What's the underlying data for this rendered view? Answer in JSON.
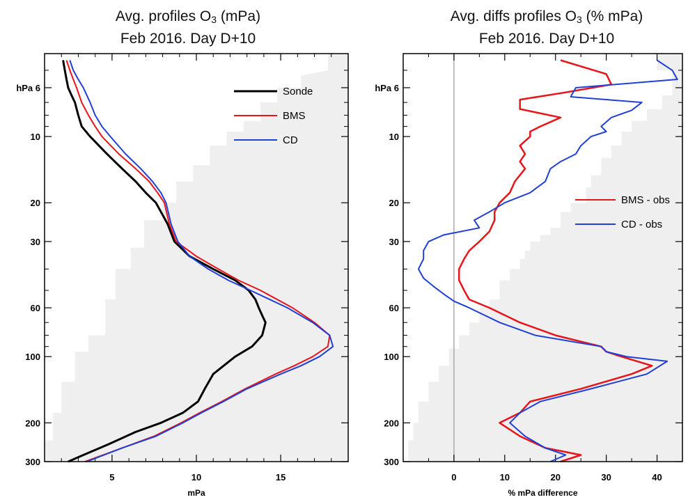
{
  "colors": {
    "sonde": "#000000",
    "bms": "#e8141a",
    "cd": "#1f3fd6",
    "shade": "#efefef",
    "zero_line": "#a8a8a8"
  },
  "titles": [
    {
      "line1_pre": "Avg. profiles O",
      "sub": "3",
      "line1_post": " (mPa)",
      "line2": "Feb 2016. Day D+10"
    },
    {
      "line1_pre": "Avg. diffs profiles O",
      "sub": "3",
      "line1_post": " (% mPa)",
      "line2": "Feb 2016. Day D+10"
    }
  ],
  "chart_data": [
    {
      "type": "line",
      "title": "Avg. profiles O3 (mPa) Feb 2016. Day D+10",
      "xlabel": "mPa",
      "ylabel": "hPa",
      "y_scale": "log",
      "y_inverted": true,
      "xlim": [
        1,
        19
      ],
      "ylim": [
        4.2,
        300
      ],
      "xticks": [
        5,
        10,
        15
      ],
      "yticks": [
        6,
        10,
        20,
        30,
        60,
        100,
        200,
        300
      ],
      "ytick_labels": [
        "hPa 6",
        "10",
        "20",
        "30",
        "60",
        "100",
        "200",
        "300"
      ],
      "legend": "top-right",
      "series": [
        {
          "name": "Sonde",
          "p": [
            4.5,
            5.0,
            5.5,
            6.0,
            6.5,
            7.0,
            8.0,
            9.0,
            10,
            12,
            14,
            16,
            18,
            20,
            25,
            30,
            35,
            40,
            45,
            50,
            55,
            60,
            65,
            70,
            80,
            90,
            100,
            120,
            140,
            160,
            180,
            200,
            220,
            250,
            280,
            300
          ],
          "x": [
            2.1,
            2.2,
            2.3,
            2.4,
            2.6,
            2.8,
            3.0,
            3.2,
            3.7,
            4.7,
            5.6,
            6.4,
            7.0,
            7.6,
            8.3,
            8.7,
            9.6,
            11.0,
            12.3,
            13.1,
            13.5,
            13.7,
            13.9,
            14.1,
            13.9,
            13.3,
            12.3,
            11.0,
            10.5,
            10.1,
            9.2,
            7.9,
            6.4,
            4.8,
            3.3,
            2.4
          ]
        },
        {
          "name": "BMS",
          "p": [
            4.5,
            5.0,
            5.5,
            6.0,
            7.0,
            8.0,
            9.0,
            10,
            12,
            14,
            16,
            18,
            20,
            25,
            30,
            35,
            40,
            45,
            50,
            60,
            70,
            80,
            90,
            100,
            110,
            120,
            140,
            160,
            180,
            200,
            230,
            260,
            300
          ],
          "x": [
            2.3,
            2.5,
            2.7,
            2.9,
            3.2,
            3.6,
            4.0,
            4.4,
            5.4,
            6.4,
            7.2,
            7.7,
            8.1,
            8.4,
            8.8,
            10.0,
            11.3,
            12.5,
            13.8,
            15.7,
            17.0,
            17.9,
            17.8,
            16.9,
            15.8,
            14.7,
            12.9,
            11.5,
            10.2,
            9.1,
            7.5,
            5.6,
            3.4
          ]
        },
        {
          "name": "CD",
          "p": [
            4.5,
            5.0,
            5.5,
            6.0,
            7.0,
            8.0,
            9.0,
            10,
            12,
            14,
            16,
            18,
            20,
            25,
            30,
            35,
            40,
            45,
            50,
            60,
            70,
            80,
            90,
            100,
            110,
            120,
            140,
            160,
            180,
            200,
            230,
            260,
            300
          ],
          "x": [
            2.5,
            2.7,
            3.0,
            3.3,
            3.7,
            4.0,
            4.4,
            4.9,
            5.8,
            6.7,
            7.4,
            7.9,
            8.2,
            8.5,
            8.9,
            9.6,
            10.7,
            11.9,
            13.2,
            15.4,
            16.9,
            17.9,
            18.1,
            17.3,
            16.2,
            15.0,
            13.0,
            11.6,
            10.3,
            9.2,
            7.6,
            5.6,
            3.5
          ]
        }
      ]
    },
    {
      "type": "line",
      "title": "Avg. diffs profiles O3 (% mPa) Feb 2016. Day D+10",
      "xlabel": "% mPa difference",
      "ylabel": "hPa",
      "y_scale": "log",
      "y_inverted": true,
      "xlim": [
        -10,
        45
      ],
      "ylim": [
        4.2,
        300
      ],
      "xticks": [
        0,
        10,
        20,
        30,
        40
      ],
      "yticks": [
        6,
        10,
        20,
        30,
        60,
        100,
        200,
        300
      ],
      "ytick_labels": [
        "hPa 6",
        "10",
        "20",
        "30",
        "60",
        "100",
        "200",
        "300"
      ],
      "legend": "right",
      "series": [
        {
          "name": "BMS - obs",
          "p": [
            4.5,
            5.2,
            5.8,
            6.3,
            6.8,
            7.5,
            8.2,
            9.0,
            9.5,
            10,
            11,
            12,
            13,
            14,
            16,
            18,
            20,
            22,
            24,
            27,
            30,
            33,
            36,
            40,
            45,
            50,
            55,
            60,
            70,
            80,
            90,
            95,
            100,
            110,
            120,
            140,
            160,
            180,
            200,
            230,
            260,
            280,
            300
          ],
          "x": [
            21,
            30,
            31,
            22,
            13,
            13,
            21,
            17,
            15,
            15,
            13,
            14,
            13,
            14,
            12,
            11,
            9,
            8,
            8,
            7,
            5,
            3,
            2,
            1,
            1,
            2,
            3,
            7,
            13,
            20,
            29,
            30,
            33,
            39,
            35,
            25,
            15,
            13,
            9,
            13,
            18,
            25,
            21
          ]
        },
        {
          "name": "CD - obs",
          "p": [
            4.5,
            5.0,
            5.5,
            6.0,
            6.6,
            7.0,
            7.6,
            8.2,
            9.0,
            9.5,
            10,
            11,
            12,
            13,
            14,
            16,
            18,
            20,
            22,
            24,
            26,
            28,
            30,
            33,
            36,
            40,
            44,
            48,
            52,
            56,
            60,
            70,
            80,
            90,
            95,
            100,
            105,
            120,
            140,
            160,
            180,
            200,
            230,
            260,
            280,
            300
          ],
          "x": [
            40,
            43,
            44,
            24,
            23,
            37,
            35,
            31,
            29,
            30,
            27,
            25,
            24,
            21,
            19,
            18,
            15,
            10,
            7,
            4,
            5,
            -2,
            -5,
            -6,
            -6,
            -7,
            -6,
            -4,
            -2,
            0,
            3,
            9,
            16,
            29,
            30,
            34,
            42,
            38,
            27,
            17,
            13,
            11,
            14,
            18,
            22,
            19
          ]
        }
      ]
    }
  ]
}
